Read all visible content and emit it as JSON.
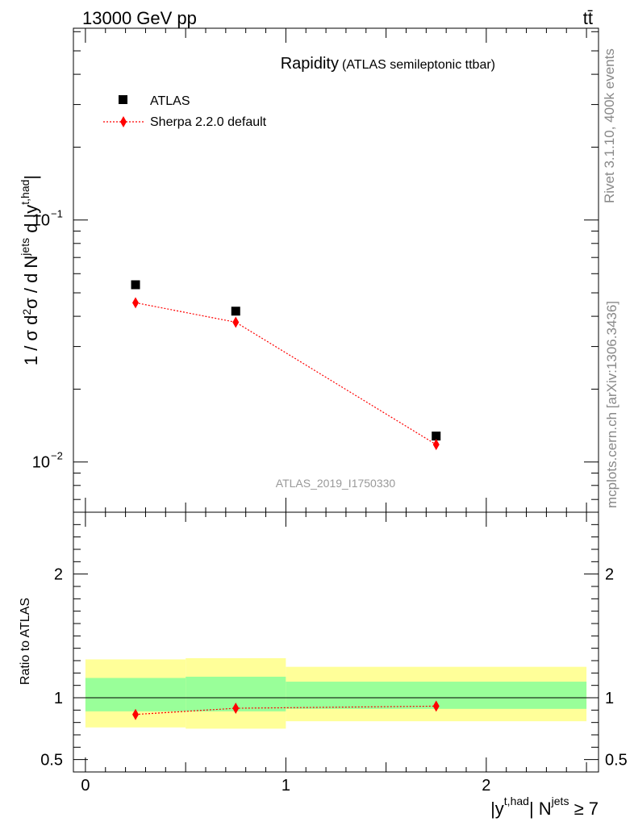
{
  "header": {
    "energy_label": "13000 GeV pp",
    "process_label": "tt̄"
  },
  "side_text": {
    "rivet": "Rivet 3.1.10,  400k events",
    "mcplots": "mcplots.cern.ch [arXiv:1306.3436]"
  },
  "chart_data": [
    {
      "type": "scatter",
      "title": "Rapidity",
      "subtitle": "(ATLAS semileptonic ttbar)",
      "analysis_id": "ATLAS_2019_I1750330",
      "ylabel": "1 / σ d²σ / d N^jets d |y^t,had|",
      "yscale": "log",
      "ylim": [
        0.0062,
        0.62
      ],
      "xlim": [
        -0.06,
        2.56
      ],
      "yticks": [
        {
          "value": 0.1,
          "label": "10",
          "exp": "−1"
        },
        {
          "value": 0.01,
          "label": "10",
          "exp": "−2"
        }
      ],
      "legend_position": "top-left",
      "series": [
        {
          "name": "ATLAS",
          "marker": "square",
          "color": "#000000",
          "points": [
            {
              "x": 0.25,
              "y": 0.054
            },
            {
              "x": 0.75,
              "y": 0.042
            },
            {
              "x": 1.75,
              "y": 0.0128
            }
          ]
        },
        {
          "name": "Sherpa 2.2.0 default",
          "marker": "diamond",
          "line": "dotted",
          "color": "#ff0000",
          "points": [
            {
              "x": 0.25,
              "y": 0.0455
            },
            {
              "x": 0.75,
              "y": 0.0378
            },
            {
              "x": 1.75,
              "y": 0.0118
            }
          ]
        }
      ]
    },
    {
      "type": "scatter",
      "ylabel": "Ratio to ATLAS",
      "xlabel_main": "|y",
      "xlabel_sup": "t,had",
      "xlabel_mid": "| N",
      "xlabel_sup2": "jets",
      "xlabel_tail": " ≥ 7",
      "ylim": [
        0.4,
        2.5
      ],
      "xlim": [
        -0.06,
        2.56
      ],
      "xticks": [
        {
          "value": 0,
          "label": "0"
        },
        {
          "value": 1,
          "label": "1"
        },
        {
          "value": 2,
          "label": "2"
        }
      ],
      "yticks": [
        {
          "value": 0.5,
          "label": "0.5"
        },
        {
          "value": 1,
          "label": "1"
        },
        {
          "value": 2,
          "label": "2"
        }
      ],
      "reference_line": 1,
      "bands": [
        {
          "x": [
            0,
            0.5
          ],
          "stat": [
            0.89,
            1.16
          ],
          "total": [
            0.76,
            1.31
          ]
        },
        {
          "x": [
            0.5,
            1.0
          ],
          "stat": [
            0.89,
            1.17
          ],
          "total": [
            0.75,
            1.32
          ]
        },
        {
          "x": [
            1.0,
            2.5
          ],
          "stat": [
            0.91,
            1.13
          ],
          "total": [
            0.81,
            1.25
          ]
        }
      ],
      "colors": {
        "stat": "#99ff99",
        "total": "#ffff99"
      },
      "series": [
        {
          "name": "Sherpa 2.2.0 default",
          "color": "#ff0000",
          "points": [
            {
              "x": 0.25,
              "y": 0.865
            },
            {
              "x": 0.75,
              "y": 0.915
            },
            {
              "x": 1.75,
              "y": 0.932
            }
          ]
        }
      ]
    }
  ]
}
